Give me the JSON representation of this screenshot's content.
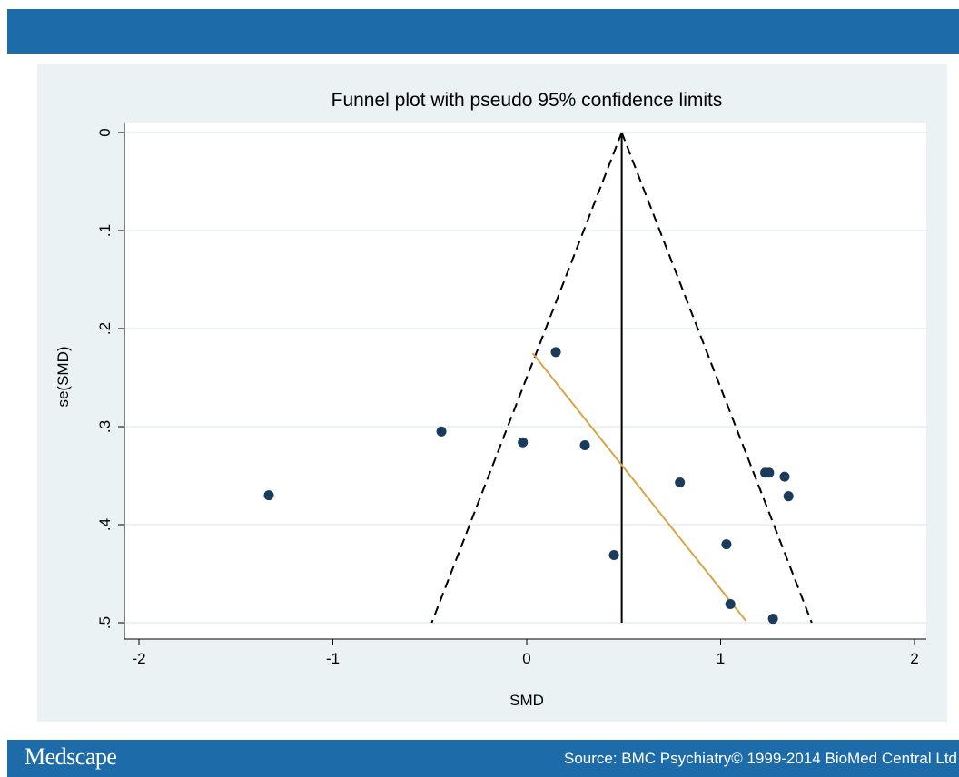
{
  "footer": {
    "brand": "Medscape",
    "source": "Source: BMC Psychiatry© 1999-2014 BioMed Central Ltd"
  },
  "colors": {
    "bar": "#1d6ba8",
    "panel": "#eaf2f3",
    "point": "#1a3b5c",
    "regression": "#d9a441"
  },
  "chart_data": {
    "type": "scatter",
    "title": "Funnel plot with pseudo 95% confidence limits",
    "xlabel": "SMD",
    "ylabel": "se(SMD)",
    "xlim": [
      -2,
      2
    ],
    "ylim": [
      0,
      0.5
    ],
    "y_reversed": true,
    "grid": true,
    "x_ticks": [
      {
        "value": -2,
        "label": "-2"
      },
      {
        "value": -1,
        "label": "-1"
      },
      {
        "value": 0,
        "label": "0"
      },
      {
        "value": 1,
        "label": "1"
      },
      {
        "value": 2,
        "label": "2"
      }
    ],
    "y_ticks": [
      {
        "value": 0,
        "label": "0"
      },
      {
        "value": 0.1,
        "label": ".1"
      },
      {
        "value": 0.2,
        "label": ".2"
      },
      {
        "value": 0.3,
        "label": ".3"
      },
      {
        "value": 0.4,
        "label": ".4"
      },
      {
        "value": 0.5,
        "label": ".5"
      }
    ],
    "pooled_estimate": 0.49,
    "confidence_limits": [
      {
        "x": [
          0.49,
          -0.49
        ],
        "y": [
          0,
          0.5
        ]
      },
      {
        "x": [
          0.49,
          1.47
        ],
        "y": [
          0,
          0.5
        ]
      }
    ],
    "regression_line": {
      "x": [
        0.03,
        1.13
      ],
      "y": [
        0.225,
        0.498
      ]
    },
    "points": [
      {
        "x": -1.33,
        "y": 0.37
      },
      {
        "x": -0.44,
        "y": 0.305
      },
      {
        "x": -0.02,
        "y": 0.316
      },
      {
        "x": 0.15,
        "y": 0.224
      },
      {
        "x": 0.3,
        "y": 0.319
      },
      {
        "x": 0.45,
        "y": 0.431
      },
      {
        "x": 0.79,
        "y": 0.357
      },
      {
        "x": 1.03,
        "y": 0.42
      },
      {
        "x": 1.05,
        "y": 0.481
      },
      {
        "x": 1.23,
        "y": 0.347
      },
      {
        "x": 1.25,
        "y": 0.347
      },
      {
        "x": 1.33,
        "y": 0.351
      },
      {
        "x": 1.35,
        "y": 0.371
      },
      {
        "x": 1.27,
        "y": 0.496
      }
    ]
  }
}
